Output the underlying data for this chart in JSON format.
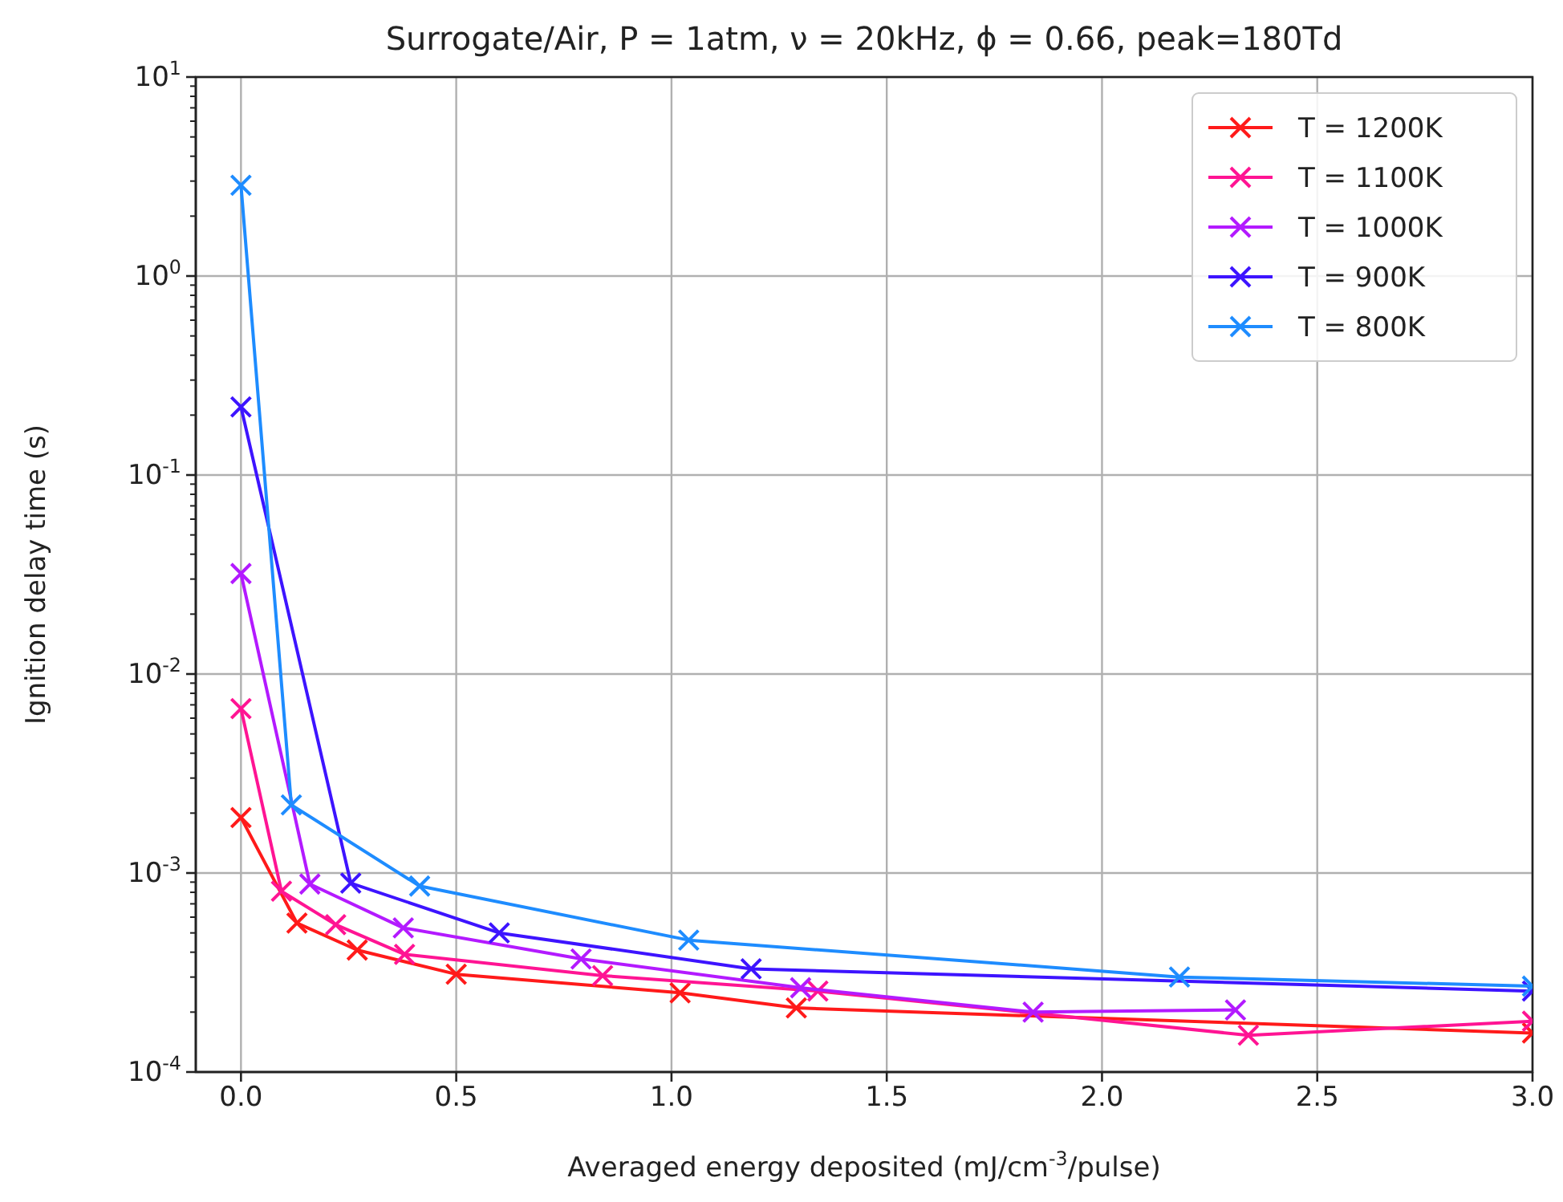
{
  "chart_data": {
    "type": "line",
    "title": "Surrogate/Air, P = 1atm, ν = 20kHz, ϕ = 0.66, peak=180Td",
    "xlabel": "Averaged energy deposited (mJ/cm$^{-3}$/pulse)",
    "ylabel": "Ignition delay time (s)",
    "log": "y",
    "grid": true,
    "legend": "top right",
    "marker": "cross",
    "line_style": "solid",
    "xlim": [
      -0.105,
      3.0
    ],
    "xticks": [
      {
        "value": 0,
        "label": "0.0"
      },
      {
        "value": 0.5,
        "label": "0.5"
      },
      {
        "value": 1,
        "label": "1.0"
      },
      {
        "value": 1.5,
        "label": "1.5"
      },
      {
        "value": 2,
        "label": "2.0"
      },
      {
        "value": 2.5,
        "label": "2.5"
      },
      {
        "value": 3,
        "label": "3.0"
      }
    ],
    "ylim": [
      0.0001,
      10
    ],
    "yticks": [
      {
        "value": 0.0001,
        "label": "10$^{-4}$"
      },
      {
        "value": 0.001,
        "label": "10$^{-3}$"
      },
      {
        "value": 0.01,
        "label": "10$^{-2}$"
      },
      {
        "value": 0.1,
        "label": "10$^{-1}$"
      },
      {
        "value": 1,
        "label": "10$^{0}$"
      },
      {
        "value": 10,
        "label": "10$^{1}$"
      }
    ],
    "series": [
      {
        "name": "T = 1200K",
        "color": "#ff1a1a",
        "x": [
          0,
          0.13,
          0.27,
          0.5,
          1.02,
          1.29,
          3.0
        ],
        "values": [
          0.0019,
          0.00056,
          0.00041,
          0.00031,
          0.00025,
          0.00021,
          0.000157
        ]
      },
      {
        "name": "T = 1100K",
        "color": "#ff1493",
        "x": [
          0,
          0.094,
          0.22,
          0.38,
          0.84,
          1.34,
          2.34,
          3.0
        ],
        "values": [
          0.0067,
          0.00081,
          0.00055,
          0.00039,
          0.000305,
          0.000255,
          0.000153,
          0.00018
        ]
      },
      {
        "name": "T = 1000K",
        "color": "#b31aff",
        "x": [
          0,
          0.16,
          0.377,
          0.79,
          1.3,
          1.84,
          2.31
        ],
        "values": [
          0.032,
          0.00088,
          0.00053,
          0.00037,
          0.000265,
          0.0002,
          0.000205
        ]
      },
      {
        "name": "T = 900K",
        "color": "#3d14ff",
        "x": [
          0,
          0.255,
          0.6,
          1.185,
          3.0
        ],
        "values": [
          0.22,
          0.00089,
          0.0005,
          0.00033,
          0.000255
        ]
      },
      {
        "name": "T = 800K",
        "color": "#1e8cff",
        "x": [
          0,
          0.117,
          0.415,
          1.04,
          2.18,
          3.0
        ],
        "values": [
          2.86,
          0.0022,
          0.00086,
          0.00046,
          0.0003,
          0.00027
        ]
      }
    ]
  }
}
